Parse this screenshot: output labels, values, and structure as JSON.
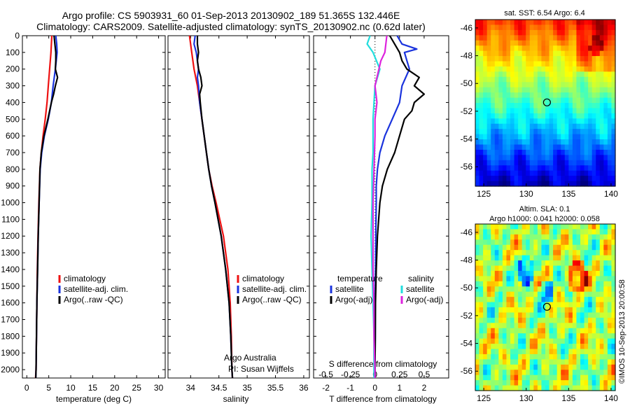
{
  "header": {
    "title_line1": "Argo profile: CS 5903931_60 01-Sep-2013 20130902_189 51.365S 132.446E",
    "title_line2": "Climatology: CARS2009. Satellite-adjusted climatology: synTS_20130902.nc (0.62d later)"
  },
  "footer": {
    "credit_line1": "Argo Australia",
    "credit_line2": "PI: Susan Wijffels",
    "timestamp": "©IMOS 10-Sep-2013 20:00:58"
  },
  "colors": {
    "climatology": "#ee1111",
    "satellite": "#1a33dd",
    "argo": "#000000",
    "satellite_s": "#22dddd",
    "argo_s": "#dd22dd",
    "zero_line": "#000000"
  },
  "legends": {
    "temp": [
      "climatology",
      "satellite-adj. clim.",
      "Argo(..raw -QC)"
    ],
    "sal": [
      "climatology",
      "satellite-adj. clim.",
      "Argo(..raw -QC)"
    ],
    "diff_header_t": "temperature",
    "diff_header_s": "salinity",
    "diff_t": [
      "satellite",
      "Argo(-adj)"
    ],
    "diff_s": [
      "satellite",
      "Argo(-adj)"
    ]
  },
  "chart_data": [
    {
      "type": "line",
      "id": "temperature",
      "xlabel": "temperature (deg C)",
      "ylabel": "",
      "xlim": [
        -1,
        31.5
      ],
      "ylim": [
        2050,
        0
      ],
      "xticks": [
        0,
        5,
        10,
        15,
        20,
        25,
        30
      ],
      "yticks": [
        0,
        100,
        200,
        300,
        400,
        500,
        600,
        700,
        800,
        900,
        1000,
        1100,
        1200,
        1300,
        1400,
        1500,
        1600,
        1700,
        1800,
        1900,
        2000
      ],
      "series": [
        {
          "name": "climatology",
          "color_key": "climatology",
          "depth": [
            0,
            50,
            100,
            200,
            300,
            400,
            500,
            600,
            700,
            800,
            1000,
            1200,
            1400,
            1600,
            1800,
            2000,
            2050
          ],
          "values": [
            5.7,
            5.6,
            5.5,
            5.2,
            4.9,
            4.6,
            4.2,
            3.7,
            3.3,
            3.0,
            2.75,
            2.55,
            2.4,
            2.3,
            2.2,
            2.1,
            2.0
          ]
        },
        {
          "name": "satellite-adj. clim.",
          "color_key": "satellite",
          "depth": [
            0,
            50,
            100,
            200,
            300,
            400,
            500,
            600,
            700,
            800,
            1000,
            1200,
            1400,
            1600,
            1800,
            2000,
            2050
          ],
          "values": [
            6.6,
            6.8,
            6.9,
            6.5,
            6.0,
            5.6,
            4.9,
            4.0,
            3.4,
            3.05,
            2.8,
            2.6,
            2.45,
            2.3,
            2.2,
            2.1,
            2.05
          ]
        },
        {
          "name": "Argo(..raw -QC)",
          "color_key": "argo",
          "depth": [
            0,
            50,
            100,
            150,
            200,
            250,
            300,
            350,
            400,
            500,
            600,
            700,
            800,
            1000,
            1200,
            1400,
            1600,
            1800,
            2000,
            2050
          ],
          "values": [
            6.2,
            6.4,
            6.6,
            6.6,
            6.5,
            7.0,
            6.5,
            6.1,
            5.6,
            4.8,
            3.9,
            3.3,
            3.0,
            2.8,
            2.6,
            2.45,
            2.3,
            2.2,
            2.1,
            2.05
          ]
        }
      ]
    },
    {
      "type": "line",
      "id": "salinity",
      "xlabel": "salinity",
      "ylabel": "",
      "xlim": [
        33.6,
        36.1
      ],
      "ylim": [
        2050,
        0
      ],
      "xticks": [
        34,
        34.5,
        35,
        35.5,
        36
      ],
      "series": [
        {
          "name": "climatology",
          "color_key": "climatology",
          "depth": [
            0,
            50,
            100,
            200,
            300,
            400,
            500,
            600,
            700,
            800,
            900,
            1000,
            1200,
            1400,
            1600,
            1800,
            2000,
            2050
          ],
          "values": [
            33.98,
            34.0,
            34.02,
            34.06,
            34.12,
            34.16,
            34.2,
            34.24,
            34.28,
            34.32,
            34.38,
            34.45,
            34.58,
            34.66,
            34.7,
            34.72,
            34.73,
            34.74
          ]
        },
        {
          "name": "satellite-adj. clim.",
          "color_key": "satellite",
          "depth": [
            0,
            50,
            100,
            150,
            200,
            250,
            300,
            400,
            500,
            600,
            700,
            800,
            900,
            1000,
            1200,
            1400,
            1600,
            1800,
            2000,
            2050
          ],
          "values": [
            34.08,
            34.06,
            34.1,
            34.12,
            34.14,
            34.12,
            34.14,
            34.16,
            34.2,
            34.24,
            34.28,
            34.32,
            34.37,
            34.43,
            34.54,
            34.62,
            34.68,
            34.71,
            34.73,
            34.74
          ]
        },
        {
          "name": "Argo(..raw -QC)",
          "color_key": "argo",
          "depth": [
            0,
            50,
            100,
            150,
            200,
            250,
            300,
            350,
            400,
            500,
            600,
            700,
            800,
            900,
            1000,
            1200,
            1400,
            1600,
            1800,
            2000,
            2050
          ],
          "values": [
            34.12,
            34.12,
            34.14,
            34.12,
            34.14,
            34.18,
            34.2,
            34.16,
            34.17,
            34.2,
            34.24,
            34.28,
            34.32,
            34.37,
            34.43,
            34.54,
            34.62,
            34.68,
            34.71,
            34.73,
            34.74
          ]
        }
      ]
    },
    {
      "type": "line",
      "id": "difference",
      "xlabel": "T difference from climatology",
      "x2label": "S difference from climatology",
      "xlim": [
        -2.5,
        3.0
      ],
      "ylim": [
        2050,
        0
      ],
      "xticks": [
        -2,
        -1,
        0,
        1,
        2
      ],
      "xtick_labels": [
        "-2",
        "-1",
        "0",
        "1",
        "2"
      ],
      "s_xticks": [
        -0.5,
        -0.25,
        0,
        0.25,
        0.5
      ],
      "s_xtick_labels": [
        "-0.5",
        "-0.25",
        "0",
        "0.25",
        "0.5"
      ],
      "s_scale_factor": 4,
      "series": [
        {
          "name": "temperature satellite",
          "color_key": "satellite",
          "units": "degC",
          "depth": [
            0,
            50,
            80,
            100,
            150,
            200,
            300,
            400,
            500,
            600,
            700,
            800,
            900,
            1000,
            1200,
            1400,
            1600,
            1800,
            2000,
            2050
          ],
          "values": [
            0.9,
            1.1,
            1.7,
            1.2,
            1.3,
            1.4,
            1.1,
            1.0,
            0.7,
            0.4,
            0.2,
            0.1,
            0.05,
            0.05,
            0.03,
            0.02,
            0.01,
            0.01,
            0.0,
            0.0
          ]
        },
        {
          "name": "temperature Argo(-adj)",
          "color_key": "argo",
          "units": "degC",
          "depth": [
            0,
            50,
            100,
            150,
            200,
            250,
            300,
            350,
            400,
            450,
            500,
            600,
            700,
            800,
            900,
            1000,
            1200,
            1400,
            1600,
            1800,
            2000,
            2050
          ],
          "values": [
            0.6,
            0.8,
            1.0,
            1.1,
            1.3,
            1.8,
            1.6,
            2.0,
            1.6,
            1.5,
            1.2,
            1.0,
            0.8,
            0.5,
            0.3,
            0.2,
            0.1,
            0.05,
            0.02,
            0.01,
            0.0,
            0.0
          ]
        },
        {
          "name": "salinity satellite",
          "color_key": "satellite_s",
          "units": "psu",
          "depth": [
            0,
            50,
            100,
            200,
            300,
            400,
            500,
            600,
            700,
            800,
            1000,
            1200,
            1400,
            1600,
            1800,
            2000,
            2050
          ],
          "values": [
            -0.05,
            -0.08,
            -0.02,
            0.05,
            0.0,
            -0.01,
            -0.02,
            -0.02,
            -0.02,
            -0.03,
            -0.03,
            -0.04,
            -0.03,
            -0.02,
            -0.01,
            -0.01,
            -0.01
          ]
        },
        {
          "name": "salinity Argo(-adj)",
          "color_key": "argo_s",
          "units": "psu",
          "depth": [
            0,
            50,
            100,
            150,
            200,
            300,
            400,
            500,
            600,
            800,
            1000,
            1200,
            1400,
            1600,
            1800,
            2000,
            2050
          ],
          "values": [
            0.12,
            0.11,
            0.1,
            0.06,
            0.04,
            0.0,
            0.02,
            0.0,
            0.0,
            -0.01,
            -0.02,
            -0.02,
            -0.02,
            -0.01,
            -0.01,
            0.0,
            0.0
          ]
        }
      ]
    },
    {
      "type": "heatmap",
      "id": "sst_map",
      "title": "sat. SST: 6.54  Argo: 6.4",
      "xlim": [
        124,
        140.5
      ],
      "ylim": [
        -57.4,
        -45.4
      ],
      "xticks": [
        125,
        130,
        135,
        140
      ],
      "yticks": [
        -46,
        -48,
        -50,
        -52,
        -54,
        -56
      ],
      "profile_location": {
        "lon": 132.446,
        "lat": -51.365
      },
      "colormap": "jet",
      "value_range": [
        0,
        12
      ]
    },
    {
      "type": "heatmap",
      "id": "sla_map",
      "title_line1": "Altim. SLA: 0.1",
      "title_line2": "Argo h1000: 0.041  h2000: 0.058",
      "xlim": [
        124,
        140.5
      ],
      "ylim": [
        -57.4,
        -45.4
      ],
      "xticks": [
        125,
        130,
        135,
        140
      ],
      "yticks": [
        -46,
        -48,
        -50,
        -52,
        -54,
        -56
      ],
      "profile_location": {
        "lon": 132.446,
        "lat": -51.365
      },
      "colormap": "jet",
      "value_range": [
        -0.3,
        0.5
      ]
    }
  ]
}
